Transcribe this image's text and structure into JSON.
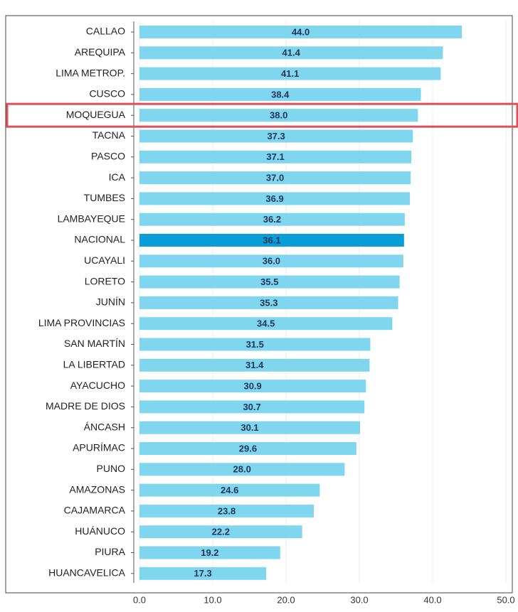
{
  "chart_data": {
    "type": "hbar",
    "categories": [
      "CALLAO",
      "AREQUIPA",
      "LIMA METROP.",
      "CUSCO",
      "MOQUEGUA",
      "TACNA",
      "PASCO",
      "ICA",
      "TUMBES",
      "LAMBAYEQUE",
      "NACIONAL",
      "UCAYALI",
      "LORETO",
      "JUNÍN",
      "LIMA PROVINCIAS",
      "SAN MARTÍN",
      "LA LIBERTAD",
      "AYACUCHO",
      "MADRE DE DIOS",
      "ÁNCASH",
      "APURÍMAC",
      "PUNO",
      "AMAZONAS",
      "CAJAMARCA",
      "HUÁNUCO",
      "PIURA",
      "HUANCAVELICA"
    ],
    "values": [
      44.0,
      41.4,
      41.1,
      38.4,
      38.0,
      37.3,
      37.1,
      37.0,
      36.9,
      36.2,
      36.1,
      36.0,
      35.5,
      35.3,
      34.5,
      31.5,
      31.4,
      30.9,
      30.7,
      30.1,
      29.6,
      28.0,
      24.6,
      23.8,
      22.2,
      19.2,
      17.3
    ],
    "value_labels": [
      "44.0",
      "41.4",
      "41.1",
      "38.4",
      "38.0",
      "37.3",
      "37.1",
      "37.0",
      "36.9",
      "36.2",
      "36.1",
      "36.0",
      "35.5",
      "35.3",
      "34.5",
      "31.5",
      "31.4",
      "30.9",
      "30.7",
      "30.1",
      "29.6",
      "28.0",
      "24.6",
      "23.8",
      "22.2",
      "19.2",
      "17.3"
    ],
    "colors": [
      "#7fd6ee",
      "#7fd6ee",
      "#7fd6ee",
      "#7fd6ee",
      "#7fd6ee",
      "#7fd6ee",
      "#7fd6ee",
      "#7fd6ee",
      "#7fd6ee",
      "#7fd6ee",
      "#0a9ed8",
      "#7fd6ee",
      "#7fd6ee",
      "#7fd6ee",
      "#7fd6ee",
      "#7fd6ee",
      "#7fd6ee",
      "#7fd6ee",
      "#7fd6ee",
      "#7fd6ee",
      "#7fd6ee",
      "#7fd6ee",
      "#7fd6ee",
      "#7fd6ee",
      "#7fd6ee",
      "#7fd6ee",
      "#7fd6ee"
    ],
    "highlight_color": "#e0505a",
    "xlim": [
      0,
      50
    ],
    "xticks": [
      {
        "value": 0,
        "label": "0.0"
      },
      {
        "value": 10,
        "label": "10.0"
      },
      {
        "value": 20,
        "label": "20.0"
      },
      {
        "value": 30,
        "label": "30.0"
      },
      {
        "value": 40,
        "label": "40.0"
      },
      {
        "value": 50,
        "label": "50.0"
      }
    ],
    "grid": true
  }
}
